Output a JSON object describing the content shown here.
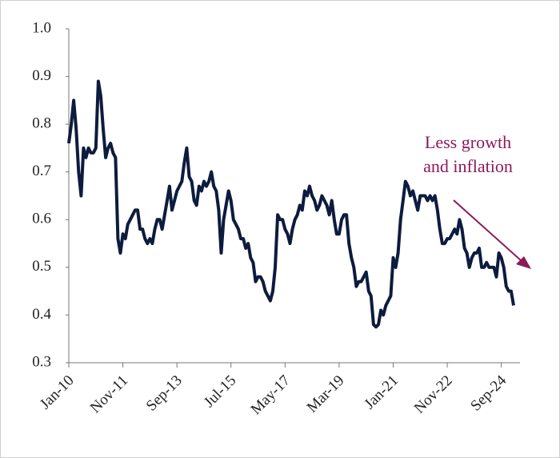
{
  "chart_data": {
    "type": "line",
    "categories": [
      "Jan-10",
      null,
      null,
      null,
      null,
      null,
      null,
      null,
      null,
      null,
      null,
      null,
      null,
      null,
      null,
      null,
      null,
      null,
      null,
      null,
      null,
      null,
      "Nov-11",
      null,
      null,
      null,
      null,
      null,
      null,
      null,
      null,
      null,
      null,
      null,
      null,
      null,
      null,
      null,
      null,
      null,
      null,
      null,
      null,
      null,
      "Sep-13",
      null,
      null,
      null,
      null,
      null,
      null,
      null,
      null,
      null,
      null,
      null,
      null,
      null,
      null,
      null,
      null,
      null,
      null,
      null,
      null,
      null,
      "Jul-15",
      null,
      null,
      null,
      null,
      null,
      null,
      null,
      null,
      null,
      null,
      null,
      null,
      null,
      null,
      null,
      null,
      null,
      null,
      null,
      null,
      null,
      "May-17",
      null,
      null,
      null,
      null,
      null,
      null,
      null,
      null,
      null,
      null,
      null,
      null,
      null,
      null,
      null,
      null,
      null,
      null,
      null,
      null,
      null,
      "Mar-19",
      null,
      null,
      null,
      null,
      null,
      null,
      null,
      null,
      null,
      null,
      null,
      null,
      null,
      null,
      null,
      null,
      null,
      null,
      null,
      null,
      null,
      "Jan-21",
      null,
      null,
      null,
      null,
      null,
      null,
      null,
      null,
      null,
      null,
      null,
      null,
      null,
      null,
      null,
      null,
      null,
      null,
      null,
      null,
      null,
      "Nov-22",
      null,
      null,
      null,
      null,
      null,
      null,
      null,
      null,
      null,
      null,
      null,
      null,
      null,
      null,
      null,
      null,
      null,
      null,
      null,
      null,
      null,
      "Sep-24",
      null,
      null,
      null,
      null,
      null
    ],
    "series": [
      {
        "color": "#0d1b3e",
        "values": [
          0.76,
          0.8,
          0.85,
          0.79,
          0.7,
          0.65,
          0.75,
          0.73,
          0.75,
          0.74,
          0.74,
          0.75,
          0.89,
          0.86,
          0.79,
          0.73,
          0.75,
          0.76,
          0.74,
          0.73,
          0.56,
          0.53,
          0.57,
          0.56,
          0.59,
          0.6,
          0.61,
          0.62,
          0.62,
          0.58,
          0.58,
          0.56,
          0.55,
          0.56,
          0.55,
          0.58,
          0.6,
          0.6,
          0.58,
          0.61,
          0.64,
          0.67,
          0.62,
          0.64,
          0.66,
          0.67,
          0.68,
          0.72,
          0.75,
          0.69,
          0.68,
          0.64,
          0.63,
          0.67,
          0.66,
          0.68,
          0.67,
          0.68,
          0.7,
          0.67,
          0.66,
          0.62,
          0.53,
          0.6,
          0.63,
          0.66,
          0.64,
          0.6,
          0.59,
          0.58,
          0.56,
          0.56,
          0.54,
          0.55,
          0.52,
          0.51,
          0.47,
          0.48,
          0.48,
          0.47,
          0.45,
          0.44,
          0.43,
          0.45,
          0.5,
          0.61,
          0.6,
          0.6,
          0.58,
          0.57,
          0.55,
          0.58,
          0.6,
          0.61,
          0.63,
          0.62,
          0.66,
          0.65,
          0.67,
          0.65,
          0.64,
          0.62,
          0.63,
          0.65,
          0.64,
          0.63,
          0.61,
          0.64,
          0.6,
          0.57,
          0.57,
          0.6,
          0.61,
          0.61,
          0.55,
          0.52,
          0.5,
          0.46,
          0.47,
          0.47,
          0.48,
          0.49,
          0.45,
          0.44,
          0.38,
          0.375,
          0.38,
          0.41,
          0.4,
          0.42,
          0.43,
          0.44,
          0.52,
          0.5,
          0.53,
          0.6,
          0.64,
          0.68,
          0.67,
          0.65,
          0.66,
          0.64,
          0.62,
          0.65,
          0.65,
          0.65,
          0.64,
          0.65,
          0.64,
          0.65,
          0.62,
          0.58,
          0.55,
          0.55,
          0.56,
          0.56,
          0.57,
          0.58,
          0.57,
          0.6,
          0.58,
          0.54,
          0.53,
          0.5,
          0.52,
          0.53,
          0.53,
          0.54,
          0.5,
          0.5,
          0.51,
          0.5,
          0.5,
          0.5,
          0.48,
          0.53,
          0.52,
          0.5,
          0.46,
          0.45,
          0.45,
          0.42
        ]
      }
    ],
    "ylim": [
      0.3,
      1.0
    ],
    "yticks": [
      0.3,
      0.4,
      0.5,
      0.6,
      0.7,
      0.8,
      0.9,
      {
        "value": 1,
        "label": "1.0"
      }
    ],
    "annotation": [
      "Less growth",
      "and inflation"
    ],
    "annotation_color": "#8b1a5c"
  }
}
